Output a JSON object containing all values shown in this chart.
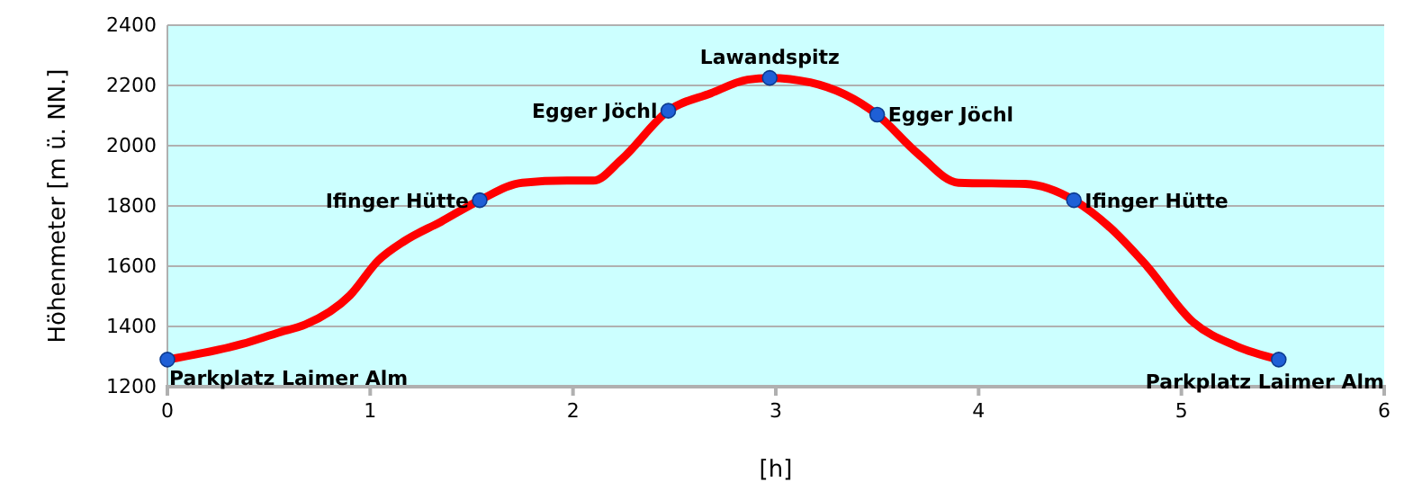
{
  "chart_data": {
    "type": "line",
    "xlabel": "[h]",
    "ylabel": "Höhenmeter [m ü. NN.]",
    "xlim": [
      0,
      6
    ],
    "xticks": [
      0,
      1,
      2,
      3,
      4,
      5,
      6
    ],
    "ylim": [
      1200,
      2400
    ],
    "yticks": [
      1200,
      1400,
      1600,
      1800,
      2000,
      2200,
      2400
    ],
    "grid": "y",
    "series": [
      {
        "color": "#ff0000",
        "marker": "none",
        "x": [
          0,
          0.37,
          0.55,
          0.68,
          0.9,
          1.04,
          1.17,
          1.35,
          1.54,
          1.75,
          1.97,
          2.1,
          2.24,
          2.47,
          2.68,
          2.86,
          2.97,
          3.17,
          3.5,
          3.7,
          3.9,
          4.23,
          4.47,
          4.65,
          4.82,
          5.06,
          5.27,
          5.48
        ],
        "values": [
          1290,
          1342,
          1380,
          1406,
          1503,
          1619,
          1684,
          1748,
          1819,
          1877,
          1884,
          1884,
          1955,
          2116,
          2174,
          2219,
          2225,
          2210,
          2103,
          1974,
          1877,
          1873,
          1819,
          1727,
          1608,
          1413,
          1335,
          1290
        ]
      },
      {
        "type": "scatter",
        "color": "#1f5fd6",
        "marker": "circle",
        "x": [
          0,
          1.54,
          2.47,
          2.97,
          3.5,
          4.47,
          5.48
        ],
        "values": [
          1290,
          1819,
          2116,
          2225,
          2103,
          1819,
          1290
        ]
      }
    ],
    "annotations": [
      {
        "text": "Parkplatz Laimer Alm",
        "x": 0,
        "y": 1290
      },
      {
        "text": "Ifinger Hütte",
        "x": 1.54,
        "y": 1819
      },
      {
        "text": "Egger Jöchl",
        "x": 2.47,
        "y": 2116
      },
      {
        "text": "Lawandspitz",
        "x": 2.97,
        "y": 2225
      },
      {
        "text": "Egger Jöchl",
        "x": 3.5,
        "y": 2103
      },
      {
        "text": "Ifinger Hütte",
        "x": 4.47,
        "y": 1819
      },
      {
        "text": "Parkplatz Laimer Alm",
        "x": 5.48,
        "y": 1290
      }
    ]
  }
}
